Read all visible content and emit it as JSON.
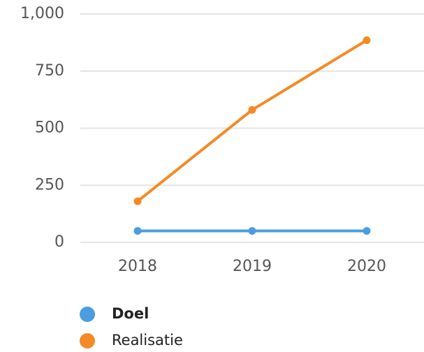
{
  "chart_data": {
    "type": "line",
    "categories": [
      "2018",
      "2019",
      "2020"
    ],
    "series": [
      {
        "name": "Doel",
        "color": "#4a9de0",
        "values": [
          50,
          50,
          50
        ]
      },
      {
        "name": "Realisatie",
        "color": "#f38a26",
        "values": [
          180,
          580,
          885
        ]
      }
    ],
    "ylim": [
      0,
      1000
    ],
    "yticks": [
      0,
      250,
      500,
      750,
      {
        "value": 1000,
        "label": "1,000"
      }
    ],
    "grid": true,
    "legend": "bottom"
  }
}
